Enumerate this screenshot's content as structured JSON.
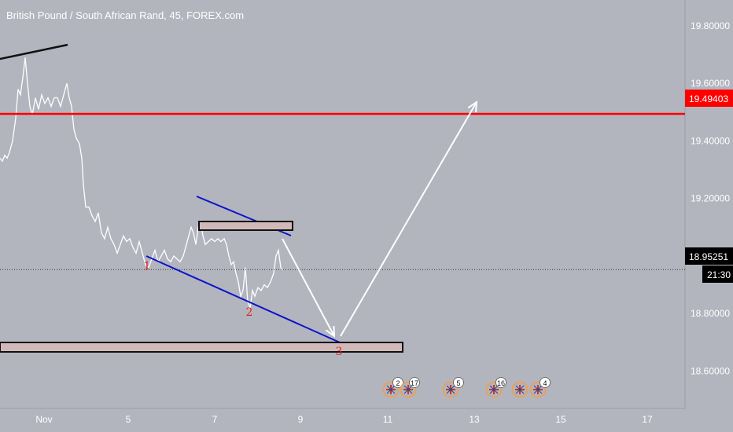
{
  "chart_data": {
    "type": "candlestick",
    "title": "British Pound / South African Rand, 45, FOREX.com",
    "xlabel": "",
    "ylabel": "",
    "ylim": [
      18.47,
      19.89
    ],
    "x_tick_labels": [
      "Nov",
      "5",
      "7",
      "9",
      "11",
      "13",
      "15",
      "17"
    ],
    "y_tick_labels": [
      "19.80000",
      "19.60000",
      "19.40000",
      "19.20000",
      "19.00000",
      "18.80000",
      "18.60000"
    ],
    "y_ticks": [
      19.8,
      19.6,
      19.4,
      19.2,
      19.0,
      18.8,
      18.6
    ],
    "price_path": [
      [
        0,
        19.34
      ],
      [
        3,
        19.33
      ],
      [
        6,
        19.35
      ],
      [
        9,
        19.34
      ],
      [
        12,
        19.36
      ],
      [
        16,
        19.4
      ],
      [
        20,
        19.48
      ],
      [
        23,
        19.58
      ],
      [
        26,
        19.56
      ],
      [
        29,
        19.62
      ],
      [
        32,
        19.69
      ],
      [
        35,
        19.6
      ],
      [
        38,
        19.52
      ],
      [
        41,
        19.49
      ],
      [
        45,
        19.55
      ],
      [
        49,
        19.51
      ],
      [
        53,
        19.56
      ],
      [
        57,
        19.53
      ],
      [
        61,
        19.55
      ],
      [
        65,
        19.52
      ],
      [
        69,
        19.55
      ],
      [
        73,
        19.55
      ],
      [
        77,
        19.52
      ],
      [
        81,
        19.56
      ],
      [
        85,
        19.6
      ],
      [
        88,
        19.55
      ],
      [
        91,
        19.52
      ],
      [
        94,
        19.44
      ],
      [
        97,
        19.41
      ],
      [
        101,
        19.39
      ],
      [
        104,
        19.34
      ],
      [
        106,
        19.25
      ],
      [
        109,
        19.17
      ],
      [
        113,
        19.17
      ],
      [
        117,
        19.14
      ],
      [
        121,
        19.12
      ],
      [
        125,
        19.15
      ],
      [
        129,
        19.08
      ],
      [
        133,
        19.06
      ],
      [
        137,
        19.1
      ],
      [
        141,
        19.06
      ],
      [
        145,
        19.04
      ],
      [
        149,
        19.01
      ],
      [
        153,
        19.04
      ],
      [
        157,
        19.07
      ],
      [
        161,
        19.05
      ],
      [
        165,
        19.06
      ],
      [
        169,
        19.03
      ],
      [
        173,
        19.01
      ],
      [
        177,
        19.05
      ],
      [
        181,
        19.01
      ],
      [
        185,
        18.97
      ],
      [
        189,
        18.96
      ],
      [
        193,
        18.99
      ],
      [
        197,
        19.02
      ],
      [
        201,
        18.98
      ],
      [
        205,
        19.0
      ],
      [
        209,
        19.02
      ],
      [
        213,
        18.99
      ],
      [
        217,
        18.98
      ],
      [
        221,
        19.0
      ],
      [
        225,
        18.99
      ],
      [
        229,
        18.98
      ],
      [
        233,
        19.0
      ],
      [
        237,
        19.04
      ],
      [
        240,
        19.07
      ],
      [
        243,
        19.1
      ],
      [
        246,
        19.08
      ],
      [
        249,
        19.04
      ],
      [
        252,
        19.1
      ],
      [
        255,
        19.12
      ],
      [
        258,
        19.07
      ],
      [
        261,
        19.04
      ],
      [
        265,
        19.05
      ],
      [
        269,
        19.06
      ],
      [
        273,
        19.05
      ],
      [
        277,
        19.06
      ],
      [
        281,
        19.05
      ],
      [
        285,
        19.06
      ],
      [
        288,
        19.04
      ],
      [
        291,
        19.0
      ],
      [
        294,
        18.97
      ],
      [
        297,
        18.98
      ],
      [
        300,
        18.94
      ],
      [
        303,
        18.91
      ],
      [
        306,
        18.86
      ],
      [
        309,
        18.88
      ],
      [
        312,
        18.96
      ],
      [
        315,
        18.84
      ],
      [
        318,
        18.82
      ],
      [
        321,
        18.88
      ],
      [
        324,
        18.86
      ],
      [
        328,
        18.89
      ],
      [
        332,
        18.88
      ],
      [
        336,
        18.9
      ],
      [
        340,
        18.89
      ],
      [
        344,
        18.91
      ],
      [
        348,
        18.94
      ],
      [
        351,
        19.0
      ],
      [
        354,
        19.02
      ],
      [
        357,
        18.96
      ],
      [
        359,
        18.95
      ]
    ],
    "annotations": [
      {
        "type": "hline",
        "value": 19.49403,
        "label": "19.49403",
        "color": "#ff0000"
      },
      {
        "type": "dotted-hline",
        "value": 18.95251,
        "label": "18.95251"
      },
      {
        "type": "time-label",
        "label": "21:30"
      },
      {
        "type": "wave-label",
        "label": "1",
        "price": 18.91
      },
      {
        "type": "wave-label",
        "label": "2",
        "price": 18.74
      },
      {
        "type": "wave-label",
        "label": "3",
        "price": 18.6
      }
    ],
    "event_badges": [
      "2",
      "17",
      "5",
      "16",
      "4"
    ],
    "colors": {
      "background": "#b2b5be",
      "candles": "#ffffff",
      "resistance_line": "#ff0000",
      "channel_lines": "#0d14c9",
      "arrows": "#ffffff",
      "wave_labels": "#e0201c",
      "zone_fill": "#d2b9b9",
      "last_price_tag": "#000000"
    }
  }
}
